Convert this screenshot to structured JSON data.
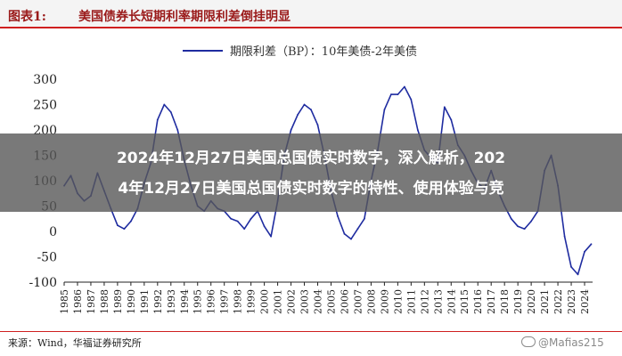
{
  "header": {
    "figure_label": "图表1:",
    "figure_title": "美国债券长短期利率期限利差倒挂明显"
  },
  "chart_data": {
    "type": "line",
    "title": "",
    "xlabel": "",
    "ylabel": "",
    "ylim": [
      -100,
      300
    ],
    "yticks": [
      300,
      250,
      200,
      150,
      100,
      50,
      0,
      -50,
      -100
    ],
    "xlim": [
      1985,
      2024.6
    ],
    "xticks": [
      "1985",
      "1986",
      "1987",
      "1988",
      "1989",
      "1990",
      "1991",
      "1992",
      "1993",
      "1994",
      "1995",
      "1996",
      "1997",
      "1998",
      "1999",
      "2000",
      "2001",
      "2002",
      "2003",
      "2004",
      "2005",
      "2006",
      "2007",
      "2008",
      "2009",
      "2010",
      "2011",
      "2012",
      "2013",
      "2014",
      "2015",
      "2016",
      "2017",
      "2018",
      "2019",
      "2020",
      "2021",
      "2022",
      "2023",
      "2024"
    ],
    "legend_position": "top-center",
    "grid": false,
    "series": [
      {
        "name": "期限利差（BP）：10年美债-2年美债",
        "color": "#1f2ca0",
        "x": [
          1985.0,
          1985.5,
          1986.0,
          1986.5,
          1987.0,
          1987.5,
          1988.0,
          1988.5,
          1989.0,
          1989.5,
          1990.0,
          1990.5,
          1991.0,
          1991.5,
          1992.0,
          1992.5,
          1993.0,
          1993.5,
          1994.0,
          1994.5,
          1995.0,
          1995.5,
          1996.0,
          1996.5,
          1997.0,
          1997.5,
          1998.0,
          1998.5,
          1999.0,
          1999.5,
          2000.0,
          2000.5,
          2001.0,
          2001.5,
          2002.0,
          2002.5,
          2003.0,
          2003.5,
          2004.0,
          2004.5,
          2005.0,
          2005.5,
          2006.0,
          2006.5,
          2007.0,
          2007.5,
          2008.0,
          2008.5,
          2009.0,
          2009.5,
          2010.0,
          2010.5,
          2011.0,
          2011.5,
          2012.0,
          2012.5,
          2013.0,
          2013.5,
          2014.0,
          2014.5,
          2015.0,
          2015.5,
          2016.0,
          2016.5,
          2017.0,
          2017.5,
          2018.0,
          2018.5,
          2019.0,
          2019.5,
          2020.0,
          2020.5,
          2021.0,
          2021.5,
          2022.0,
          2022.5,
          2023.0,
          2023.5,
          2024.0,
          2024.5
        ],
        "values": [
          90,
          110,
          75,
          60,
          70,
          115,
          80,
          45,
          12,
          5,
          20,
          45,
          95,
          135,
          220,
          250,
          235,
          200,
          140,
          90,
          50,
          40,
          60,
          45,
          40,
          25,
          20,
          5,
          25,
          40,
          10,
          -10,
          60,
          150,
          200,
          230,
          250,
          240,
          210,
          150,
          80,
          30,
          -5,
          -15,
          5,
          25,
          100,
          160,
          240,
          270,
          270,
          285,
          260,
          200,
          160,
          145,
          135,
          245,
          220,
          170,
          150,
          120,
          95,
          85,
          120,
          80,
          50,
          25,
          10,
          5,
          20,
          40,
          120,
          150,
          90,
          -10,
          -70,
          -85,
          -40,
          -25
        ]
      }
    ]
  },
  "overlay": {
    "line1": "2024年12月27日美国总国债实时数字，深入解析，202",
    "line2": "4年12月27日美国总国债实时数字的特性、使用体验与竞"
  },
  "footer": {
    "source": "来源：Wind，华福证券研究所",
    "watermark": "@Mafias215"
  }
}
